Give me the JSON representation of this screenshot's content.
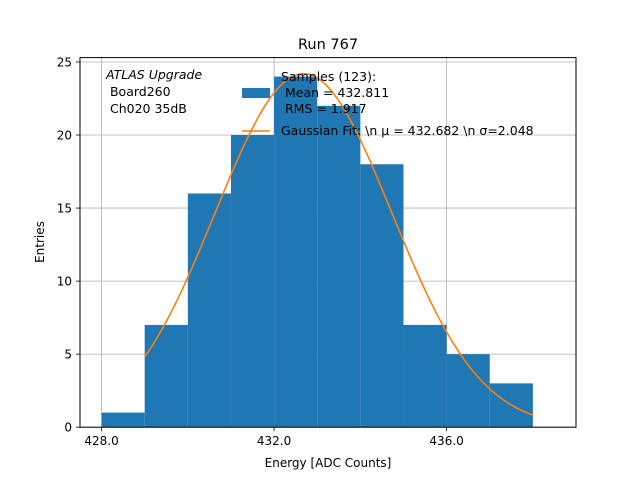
{
  "chart_data": {
    "type": "bar",
    "title": "Run 767",
    "xlabel": "Energy [ADC Counts]",
    "ylabel": "Entries",
    "xlim": [
      427.5,
      439.0
    ],
    "ylim": [
      0,
      25.3
    ],
    "xticks": [
      428.0,
      432.0,
      436.0
    ],
    "xtick_labels": [
      "428.0",
      "432.0",
      "436.0"
    ],
    "yticks": [
      0,
      5,
      10,
      15,
      20,
      25
    ],
    "ytick_labels": [
      "0",
      "5",
      "10",
      "15",
      "20",
      "25"
    ],
    "grid": true,
    "annotation_lines": [
      "ATLAS Upgrade",
      " Board260",
      " Ch020 35dB"
    ],
    "histogram": {
      "bin_edges": [
        428,
        429,
        430,
        431,
        432,
        433,
        434,
        435,
        436,
        437,
        438
      ],
      "counts": [
        1,
        7,
        16,
        20,
        24,
        22,
        18,
        7,
        5,
        3
      ],
      "color": "#1f77b4"
    },
    "fit": {
      "amplitude": 24.2,
      "mean": 432.682,
      "sigma": 2.048,
      "x_range": [
        429.0,
        438.0
      ],
      "color": "#ff7f0e"
    },
    "legend": {
      "placement": "top-center",
      "hist_label_lines": [
        "Samples (123):",
        " Mean = 432.811",
        " RMS = 1.917"
      ],
      "fit_label": "Gaussian Fit: \\n μ = 432.682 \\n σ=2.048"
    }
  }
}
